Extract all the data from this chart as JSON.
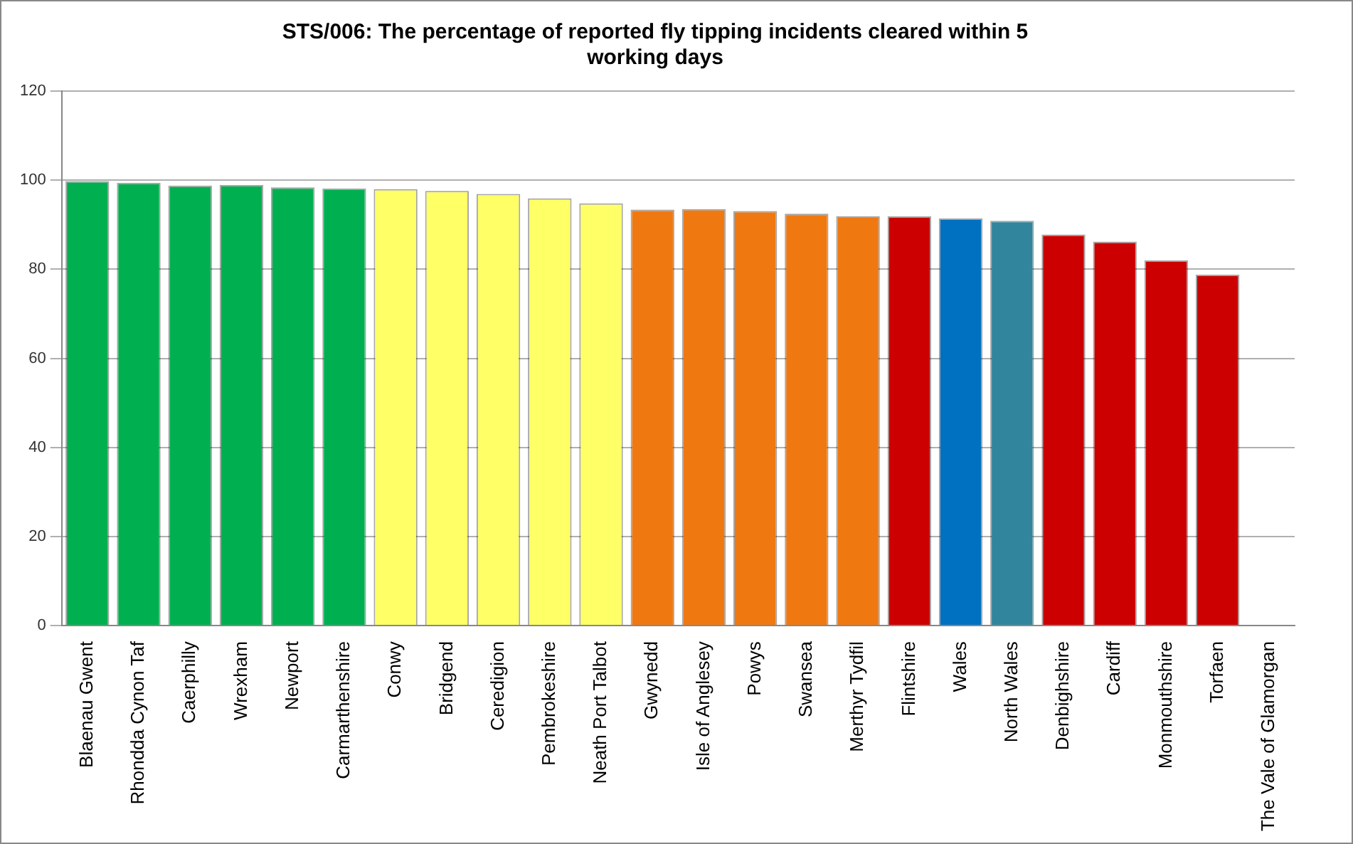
{
  "chart_data": {
    "type": "bar",
    "title": "STS/006: The percentage of reported fly tipping incidents cleared within 5 working days",
    "categories": [
      "Blaenau Gwent",
      "Rhondda Cynon Taf",
      "Caerphilly",
      "Wrexham",
      "Newport",
      "Carmarthenshire",
      "Conwy",
      "Bridgend",
      "Ceredigion",
      "Pembrokeshire",
      "Neath Port Talbot",
      "Gwynedd",
      "Isle of Anglesey",
      "Powys",
      "Swansea",
      "Merthyr Tydfil",
      "Flintshire",
      "Wales",
      "North Wales",
      "Denbighshire",
      "Cardiff",
      "Monmouthshire",
      "Torfaen",
      "The Vale of Glamorgan"
    ],
    "values": [
      99.8,
      99.4,
      98.8,
      98.9,
      98.4,
      98.1,
      98.0,
      97.6,
      96.9,
      95.9,
      94.8,
      93.4,
      93.5,
      93.1,
      92.5,
      91.9,
      91.9,
      91.4,
      90.9,
      87.8,
      86.2,
      82.0,
      78.8,
      null
    ],
    "colors": [
      "#00b050",
      "#00b050",
      "#00b050",
      "#00b050",
      "#00b050",
      "#00b050",
      "#ffff66",
      "#ffff66",
      "#ffff66",
      "#ffff66",
      "#ffff66",
      "#f07810",
      "#f07810",
      "#f07810",
      "#f07810",
      "#f07810",
      "#cc0000",
      "#0070c0",
      "#31859c",
      "#cc0000",
      "#cc0000",
      "#cc0000",
      "#cc0000",
      "#cc0000"
    ],
    "ylim": [
      0,
      120
    ],
    "yticks": [
      0,
      20,
      40,
      60,
      80,
      100,
      120
    ],
    "grid": "y"
  }
}
